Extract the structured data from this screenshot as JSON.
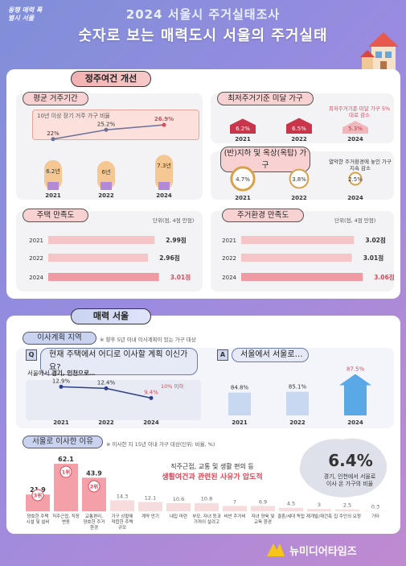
{
  "header": {
    "logo": "동행 매력 특별시 서울",
    "title1": "2024 서울시 주거실태조사",
    "title2": "숫자로 보는 매력도시 서울의 주거실태"
  },
  "section1": {
    "title": "정주여건 개선",
    "tenure": {
      "title": "평균 거주기간",
      "note": "10년 이상 장기 거주 가구 비율"
    },
    "substd": {
      "title": "최저주거기준 미달 가구",
      "note": "최저주거기준 미달 가구 5%대로 감소"
    },
    "basement": {
      "title": "(반)지하 및 옥상(옥탑) 가구",
      "note": "열악한 주거환경에 놓인 가구 지속 감소"
    },
    "housing_sat": {
      "title": "주택 만족도",
      "unit": "단위(점, 4점 만점)"
    },
    "env_sat": {
      "title": "주거환경 만족도",
      "unit": "단위(점, 4점 만점)"
    }
  },
  "section2": {
    "title": "매력 서울",
    "move_plan": {
      "title": "이사계획 지역",
      "note": "※ 향후 5년 이내 이사계획이 있는 가구 대상",
      "q_badge": "Q",
      "question": "현재 주택에서 어디로 이사할 계획 이신가요?",
      "a_badge": "A",
      "answer": "서울에서 서울로…",
      "sub_label_pre": "서울에서 ",
      "sub_label_bold": "경기, 인천으로…",
      "drop_note": "10% 이하"
    },
    "reasons": {
      "title": "서울로 이사한 이유",
      "note": "※ 이사한 지 15년 이내 가구 대상(단위: 비율, %)",
      "callout1": "직주근접, 교통 및 생활 편의 등",
      "callout2": "생활여건과 관련된 사유가 압도적",
      "big_value": "6.4%",
      "big_label1": "경기, 인천에서 서울로",
      "big_label2": "이사 온 가구의 비율"
    }
  },
  "footer": {
    "brand": "뉴미디어타임즈"
  },
  "chart_data": [
    {
      "id": "tenure_line",
      "type": "line",
      "title": "10년 이상 장기 거주 가구 비율",
      "categories": [
        "2021",
        "2022",
        "2024"
      ],
      "values": [
        22,
        25.2,
        26.9
      ],
      "labels": [
        "22%",
        "25.2%",
        "26.9%"
      ]
    },
    {
      "id": "tenure_years",
      "type": "bar",
      "categories": [
        "2021",
        "2022",
        "2024"
      ],
      "values": [
        6.2,
        6,
        7.3
      ],
      "labels": [
        "6.2년",
        "6년",
        "7.3년"
      ]
    },
    {
      "id": "substd",
      "type": "bar",
      "title": "최저주거기준 미달 가구",
      "categories": [
        "2021",
        "2022",
        "2024"
      ],
      "values": [
        6.2,
        6.5,
        5.3
      ],
      "labels": [
        "6.2%",
        "6.5%",
        "5.3%"
      ]
    },
    {
      "id": "basement",
      "type": "bubble",
      "title": "(반)지하 및 옥상(옥탑) 가구",
      "categories": [
        "2021",
        "2022",
        "2024"
      ],
      "values": [
        4.7,
        3.8,
        2.5
      ],
      "labels": [
        "4.7%",
        "3.8%",
        "2.5%"
      ]
    },
    {
      "id": "housing_sat",
      "type": "bar",
      "orientation": "horizontal",
      "title": "주택 만족도",
      "categories": [
        "2021",
        "2022",
        "2024"
      ],
      "values": [
        2.99,
        2.96,
        3.01
      ],
      "labels": [
        "2.99점",
        "2.96점",
        "3.01점"
      ],
      "xlim": [
        0,
        4
      ]
    },
    {
      "id": "env_sat",
      "type": "bar",
      "orientation": "horizontal",
      "title": "주거환경 만족도",
      "categories": [
        "2021",
        "2022",
        "2024"
      ],
      "values": [
        3.02,
        3.01,
        3.06
      ],
      "labels": [
        "3.02점",
        "3.01점",
        "3.06점"
      ],
      "xlim": [
        0,
        4
      ]
    },
    {
      "id": "to_gyeonggi",
      "type": "line",
      "categories": [
        "2021",
        "2022",
        "2024"
      ],
      "values": [
        12.9,
        12.4,
        9.4
      ],
      "labels": [
        "12.9%",
        "12.4%",
        "9.4%"
      ]
    },
    {
      "id": "seoul_to_seoul",
      "type": "bar",
      "categories": [
        "2021",
        "2022",
        "2024"
      ],
      "values": [
        84.8,
        85.1,
        87.5
      ],
      "labels": [
        "84.8%",
        "85.1%",
        "87.5%"
      ]
    },
    {
      "id": "reasons",
      "type": "bar",
      "title": "서울로 이사한 이유",
      "categories": [
        "양호한 주택 시설 및 설비",
        "직주근접, 직장 변동",
        "교통편리, 양호한 주거환경",
        "가구 상황에 적합한 주택 규모",
        "계약 만기",
        "내집 마련",
        "부모, 자녀 등과 가까이 살려고",
        "비싼 주거비",
        "자녀 양육 및 교육 환경",
        "결혼/세대 독립",
        "재개발/재건축",
        "집 주인의 요청",
        "기타"
      ],
      "values": [
        21.9,
        62.1,
        43.9,
        14.3,
        12.1,
        10.6,
        10.8,
        7,
        6.9,
        4.5,
        3,
        2.5,
        0.3
      ],
      "labels": [
        "21.9",
        "62.1",
        "43.9",
        "14.3",
        "12.1",
        "10.6",
        "10.8",
        "7",
        "6.9",
        "4.5",
        "3",
        "2.5",
        "0.3"
      ],
      "rank_badges": [
        "3위",
        "1위",
        "2위"
      ]
    }
  ]
}
